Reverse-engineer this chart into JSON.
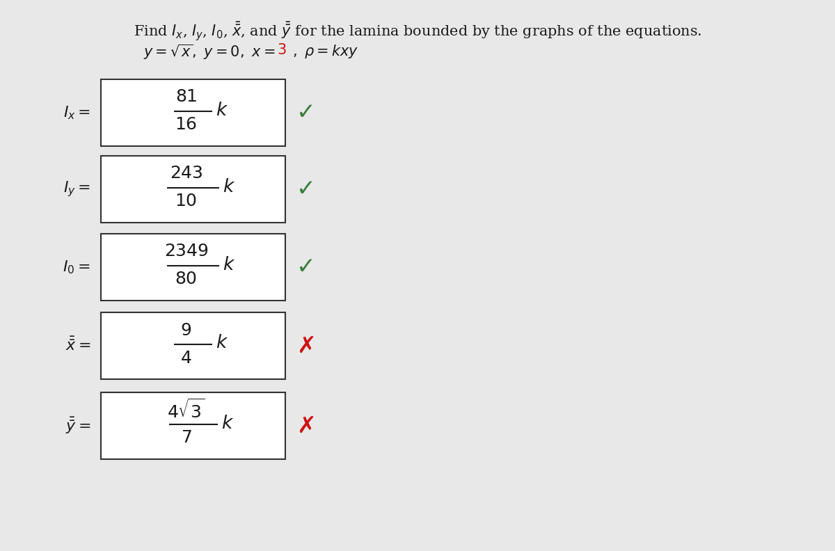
{
  "background_color": "#e8e8e8",
  "title_fontsize": 15,
  "subtitle_fontsize": 15,
  "label_fontsize": 16,
  "formula_fontsize": 18,
  "mark_fontsize": 20,
  "rows": [
    {
      "label": "$I_x =$",
      "numerator": "81",
      "denominator": "16",
      "extra": "$k$",
      "correct": true
    },
    {
      "label": "$I_y =$",
      "numerator": "243",
      "denominator": "10",
      "extra": "$k$",
      "correct": true
    },
    {
      "label": "$I_0 =$",
      "numerator": "2349",
      "denominator": "80",
      "extra": "$k$",
      "correct": true
    },
    {
      "label": "$\\bar{\\bar{x}} =$",
      "numerator": "9",
      "denominator": "4",
      "extra": "$k$",
      "correct": false
    },
    {
      "label": "$\\bar{\\bar{y}} =$",
      "numerator": "$4\\sqrt{3}$",
      "denominator": "7",
      "extra": "$k$",
      "correct": false
    }
  ],
  "green_check": "✓",
  "red_x": "✗",
  "green_color": "#3a7d3a",
  "red_color": "#cc1111",
  "box_edge_color": "#333333",
  "text_color": "#1a1a1a"
}
